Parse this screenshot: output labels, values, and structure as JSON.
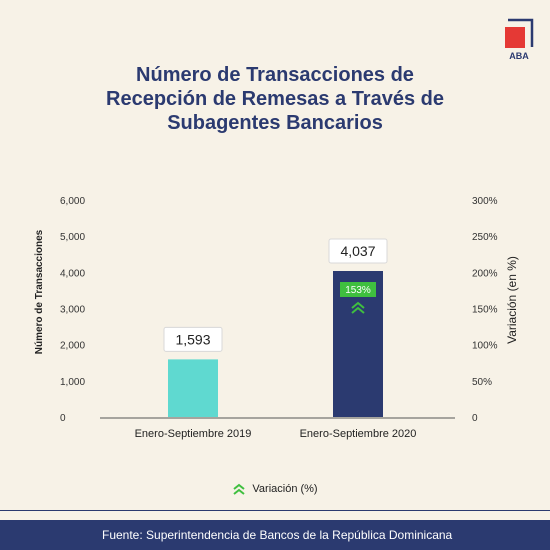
{
  "brand": {
    "logo_text": "ABA",
    "logo_color": "#e53935"
  },
  "title_lines": [
    "Número de Transacciones de",
    "Recepción de Remesas a Través de",
    "Subagentes Bancarios"
  ],
  "footer": {
    "text": "Fuente: Superintendencia de Bancos de la República Dominicana"
  },
  "chart_data": {
    "type": "bar",
    "categories": [
      "Enero-Septiembre 2019",
      "Enero-Septiembre 2020"
    ],
    "values": [
      1593,
      4037
    ],
    "value_labels": [
      "1,593",
      "4,037"
    ],
    "bar_colors": [
      "#5fd9d0",
      "#2b3a70"
    ],
    "ylabel": "Número de Transacciones",
    "y2label": "Variación (en %)",
    "ylim": [
      0,
      6000
    ],
    "y_ticks": [
      "0",
      "1,000",
      "2,000",
      "3,000",
      "4,000",
      "5,000",
      "6,000"
    ],
    "y2lim": [
      0,
      300
    ],
    "y2_ticks": [
      "0",
      "50%",
      "100%",
      "150%",
      "200%",
      "250%",
      "300%"
    ],
    "variation": {
      "label": "153%",
      "color": "#3fbf3f"
    },
    "legend": {
      "label": "Variación (%)"
    },
    "grid": false
  }
}
